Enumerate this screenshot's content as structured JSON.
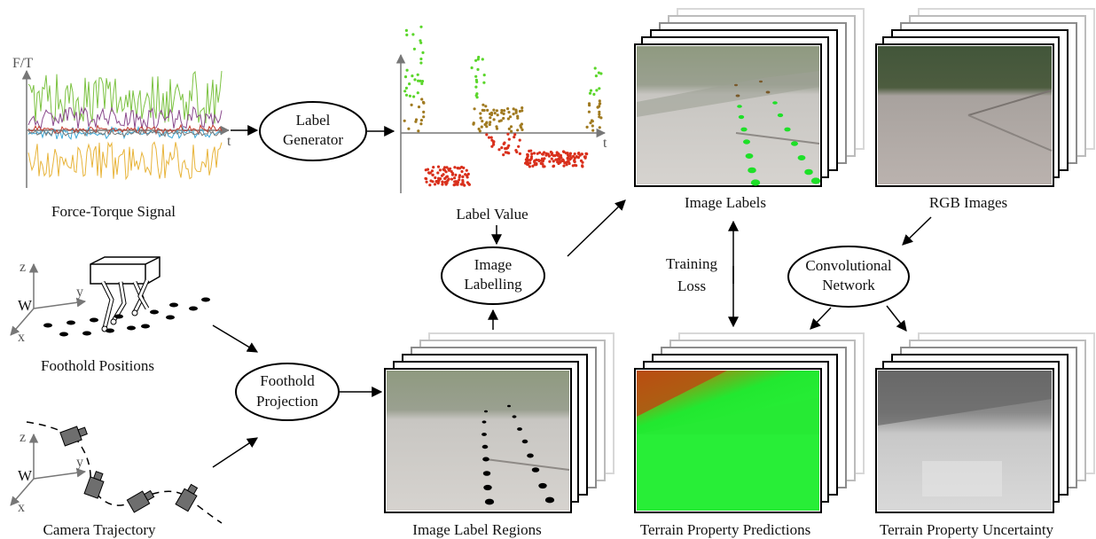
{
  "labels": {
    "force_torque_signal": "Force-Torque Signal",
    "label_value": "Label Value",
    "image_labels": "Image Labels",
    "rgb_images": "RGB Images",
    "foothold_positions": "Foothold Positions",
    "camera_trajectory": "Camera Trajectory",
    "image_label_regions": "Image Label Regions",
    "terrain_property_predictions": "Terrain Property Predictions",
    "terrain_property_uncertainty": "Terrain Property Uncertainty",
    "training_loss_line1": "Training",
    "training_loss_line2": "Loss"
  },
  "nodes": {
    "label_generator": [
      "Label",
      "Generator"
    ],
    "image_labelling": [
      "Image",
      "Labelling"
    ],
    "foothold_projection": [
      "Foothold",
      "Projection"
    ],
    "convolutional_network": [
      "Convolutional",
      "Network"
    ]
  },
  "axes": {
    "ft_y": "F/T",
    "ft_x": "t",
    "lv_x": "t",
    "coord_z": "z",
    "coord_y": "y",
    "coord_x": "x",
    "coord_w": "W"
  },
  "colors": {
    "high_label": "#5ad62a",
    "mid_label": "#a07a20",
    "low_label": "#d9301c",
    "prediction_green": "#22e830",
    "prediction_red": "#c04a10"
  }
}
